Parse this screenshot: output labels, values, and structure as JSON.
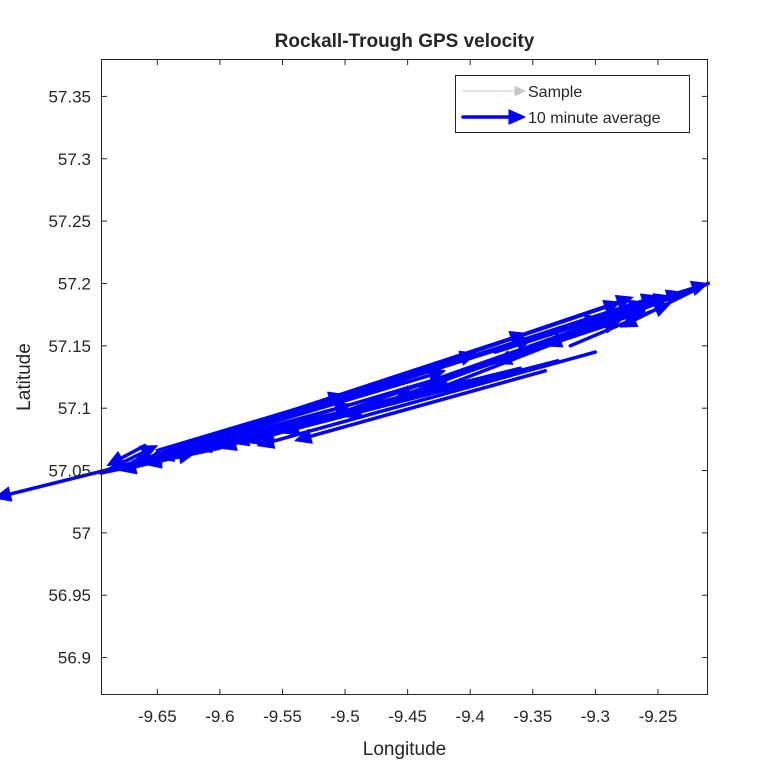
{
  "chart_data": {
    "type": "quiver",
    "title": "Rockall-Trough GPS velocity",
    "xlabel": "Longitude",
    "ylabel": "Latitude",
    "xlim": [
      -9.695,
      -9.21
    ],
    "ylim": [
      56.87,
      57.38
    ],
    "xticks": [
      -9.65,
      -9.6,
      -9.55,
      -9.5,
      -9.45,
      -9.4,
      -9.35,
      -9.3,
      -9.25
    ],
    "yticks": [
      56.9,
      56.95,
      57.0,
      57.05,
      57.1,
      57.15,
      57.2,
      57.25,
      57.3,
      57.35
    ],
    "xtick_labels": [
      "-9.65",
      "-9.6",
      "-9.55",
      "-9.5",
      "-9.45",
      "-9.4",
      "-9.35",
      "-9.3",
      "-9.25"
    ],
    "ytick_labels": [
      "56.9",
      "56.95",
      "57",
      "57.05",
      "57.1",
      "57.15",
      "57.2",
      "57.25",
      "57.3",
      "57.35"
    ],
    "grid": false,
    "legend_position": "top-right",
    "series": [
      {
        "name": "Sample",
        "color": "#c8c8c8",
        "style": "thin-arrow",
        "arrows": []
      },
      {
        "name": "10 minute average",
        "color": "#0000ff",
        "style": "thick-arrow",
        "arrows": [
          {
            "x": -9.695,
            "y": 57.048,
            "u": 0.485,
            "v": 0.152
          },
          {
            "x": -9.695,
            "y": 57.048,
            "u": 0.4,
            "v": 0.125
          },
          {
            "x": -9.695,
            "y": 57.048,
            "u": 0.34,
            "v": 0.112
          },
          {
            "x": -9.695,
            "y": 57.048,
            "u": 0.3,
            "v": 0.096
          },
          {
            "x": -9.695,
            "y": 57.048,
            "u": 0.2,
            "v": 0.055
          },
          {
            "x": -9.695,
            "y": 57.048,
            "u": 0.12,
            "v": 0.035
          },
          {
            "x": -9.695,
            "y": 57.048,
            "u": 0.045,
            "v": 0.022
          },
          {
            "x": -9.695,
            "y": 57.048,
            "u": 0.075,
            "v": 0.016
          },
          {
            "x": -9.21,
            "y": 57.2,
            "u": -0.13,
            "v": -0.05
          },
          {
            "x": -9.21,
            "y": 57.2,
            "u": -0.17,
            "v": -0.064
          },
          {
            "x": -9.21,
            "y": 57.2,
            "u": -0.22,
            "v": -0.086
          },
          {
            "x": -9.21,
            "y": 57.2,
            "u": -0.25,
            "v": -0.092
          },
          {
            "x": -9.21,
            "y": 57.2,
            "u": -0.29,
            "v": -0.107
          },
          {
            "x": -9.21,
            "y": 57.2,
            "u": -0.34,
            "v": -0.12
          },
          {
            "x": -9.21,
            "y": 57.2,
            "u": -0.07,
            "v": -0.035
          },
          {
            "x": -9.65,
            "y": 57.066,
            "u": 0.15,
            "v": 0.045
          },
          {
            "x": -9.62,
            "y": 57.07,
            "u": 0.2,
            "v": 0.06
          },
          {
            "x": -9.6,
            "y": 57.076,
            "u": 0.25,
            "v": 0.08
          },
          {
            "x": -9.56,
            "y": 57.09,
            "u": 0.28,
            "v": 0.095
          },
          {
            "x": -9.52,
            "y": 57.104,
            "u": 0.25,
            "v": 0.085
          },
          {
            "x": -9.48,
            "y": 57.115,
            "u": 0.22,
            "v": 0.07
          },
          {
            "x": -9.45,
            "y": 57.125,
            "u": 0.2,
            "v": 0.065
          },
          {
            "x": -9.42,
            "y": 57.135,
            "u": 0.18,
            "v": 0.055
          },
          {
            "x": -9.38,
            "y": 57.145,
            "u": 0.15,
            "v": 0.048
          },
          {
            "x": -9.35,
            "y": 57.155,
            "u": 0.12,
            "v": 0.038
          },
          {
            "x": -9.3,
            "y": 57.145,
            "u": -0.27,
            "v": -0.075
          },
          {
            "x": -9.33,
            "y": 57.138,
            "u": -0.25,
            "v": -0.065
          },
          {
            "x": -9.36,
            "y": 57.132,
            "u": -0.25,
            "v": -0.062
          },
          {
            "x": -9.4,
            "y": 57.122,
            "u": -0.22,
            "v": -0.055
          },
          {
            "x": -9.44,
            "y": 57.112,
            "u": -0.2,
            "v": -0.048
          },
          {
            "x": -9.48,
            "y": 57.1,
            "u": -0.17,
            "v": -0.04
          },
          {
            "x": -9.52,
            "y": 57.09,
            "u": -0.14,
            "v": -0.032
          },
          {
            "x": -9.56,
            "y": 57.08,
            "u": -0.1,
            "v": -0.025
          },
          {
            "x": -9.6,
            "y": 57.068,
            "u": -0.06,
            "v": -0.013
          },
          {
            "x": -9.34,
            "y": 57.13,
            "u": -0.2,
            "v": -0.056
          },
          {
            "x": -9.42,
            "y": 57.12,
            "u": -0.15,
            "v": -0.045
          },
          {
            "x": -9.46,
            "y": 57.108,
            "u": -0.13,
            "v": -0.036
          },
          {
            "x": -9.5,
            "y": 57.098,
            "u": -0.1,
            "v": -0.03
          },
          {
            "x": -9.37,
            "y": 57.14,
            "u": -0.22,
            "v": -0.065
          },
          {
            "x": -9.55,
            "y": 57.085,
            "u": -0.12,
            "v": -0.028
          },
          {
            "x": -9.63,
            "y": 57.062,
            "u": -0.05,
            "v": -0.012
          },
          {
            "x": -9.58,
            "y": 57.078,
            "u": -0.2,
            "v": -0.05
          },
          {
            "x": -9.4,
            "y": 57.13,
            "u": 0.12,
            "v": 0.04
          },
          {
            "x": -9.32,
            "y": 57.15,
            "u": 0.08,
            "v": 0.034
          },
          {
            "x": -9.44,
            "y": 57.118,
            "u": 0.18,
            "v": 0.06
          },
          {
            "x": -9.66,
            "y": 57.07,
            "u": -0.03,
            "v": -0.016
          }
        ]
      }
    ]
  }
}
